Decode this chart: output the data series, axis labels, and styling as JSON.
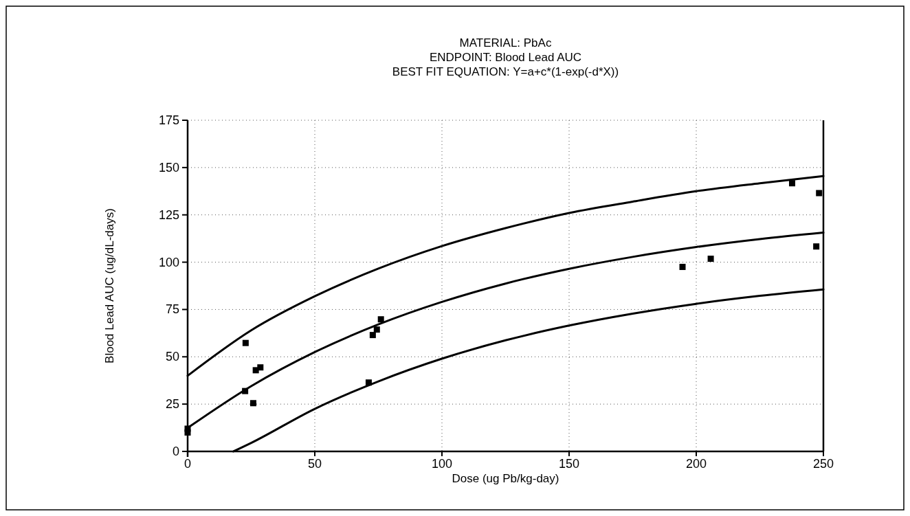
{
  "chart_data": {
    "type": "scatter",
    "title": "MATERIAL:  PbAc\nENDPOINT:  Blood Lead AUC\nBEST FIT EQUATION:  Y=a+c*(1-exp(-d*X))",
    "xlabel": "Dose (ug Pb/kg-day)",
    "ylabel": "Blood Lead AUC (ug/dL-days)",
    "xlim": [
      0,
      250
    ],
    "ylim": [
      0,
      175
    ],
    "xticks": [
      0,
      50,
      100,
      150,
      200,
      250
    ],
    "yticks": [
      0,
      25,
      50,
      75,
      100,
      125,
      150,
      175
    ],
    "grid": true,
    "series": [
      {
        "marker": "square",
        "color": "#000000",
        "x": [
          0,
          0,
          22.8,
          22.6,
          25.8,
          26.8,
          28.6,
          71.2,
          72.8,
          74.4,
          76,
          194.6,
          205.7,
          237.7,
          247.2,
          248.3
        ],
        "values": [
          12,
          10,
          57.3,
          31.9,
          25.5,
          42.9,
          44.4,
          36.4,
          61.5,
          64.4,
          69.8,
          97.5,
          101.8,
          141.7,
          108.3,
          136.5
        ]
      },
      {
        "type": "line",
        "marker": "none",
        "color": "#000000",
        "x": [
          0,
          25,
          50,
          75,
          100,
          125,
          150,
          175,
          200,
          225,
          250
        ],
        "values": [
          40,
          64,
          82,
          96.6,
          108.5,
          118,
          126,
          132,
          137.5,
          141.7,
          145.5
        ]
      },
      {
        "type": "line",
        "marker": "none",
        "color": "#000000",
        "x": [
          0,
          25,
          50,
          75,
          100,
          125,
          150,
          175,
          200,
          225,
          250
        ],
        "values": [
          12.4,
          34.5,
          52.5,
          67.1,
          79,
          88.7,
          96.5,
          102.8,
          108,
          112.2,
          115.6
        ]
      },
      {
        "type": "line",
        "marker": "none",
        "color": "#000000",
        "x": [
          18,
          25,
          50,
          75,
          100,
          125,
          150,
          175,
          200,
          225,
          250
        ],
        "values": [
          0,
          4.5,
          22.5,
          37,
          49,
          58.7,
          66.5,
          72.8,
          78,
          82.2,
          85.6
        ]
      }
    ]
  }
}
